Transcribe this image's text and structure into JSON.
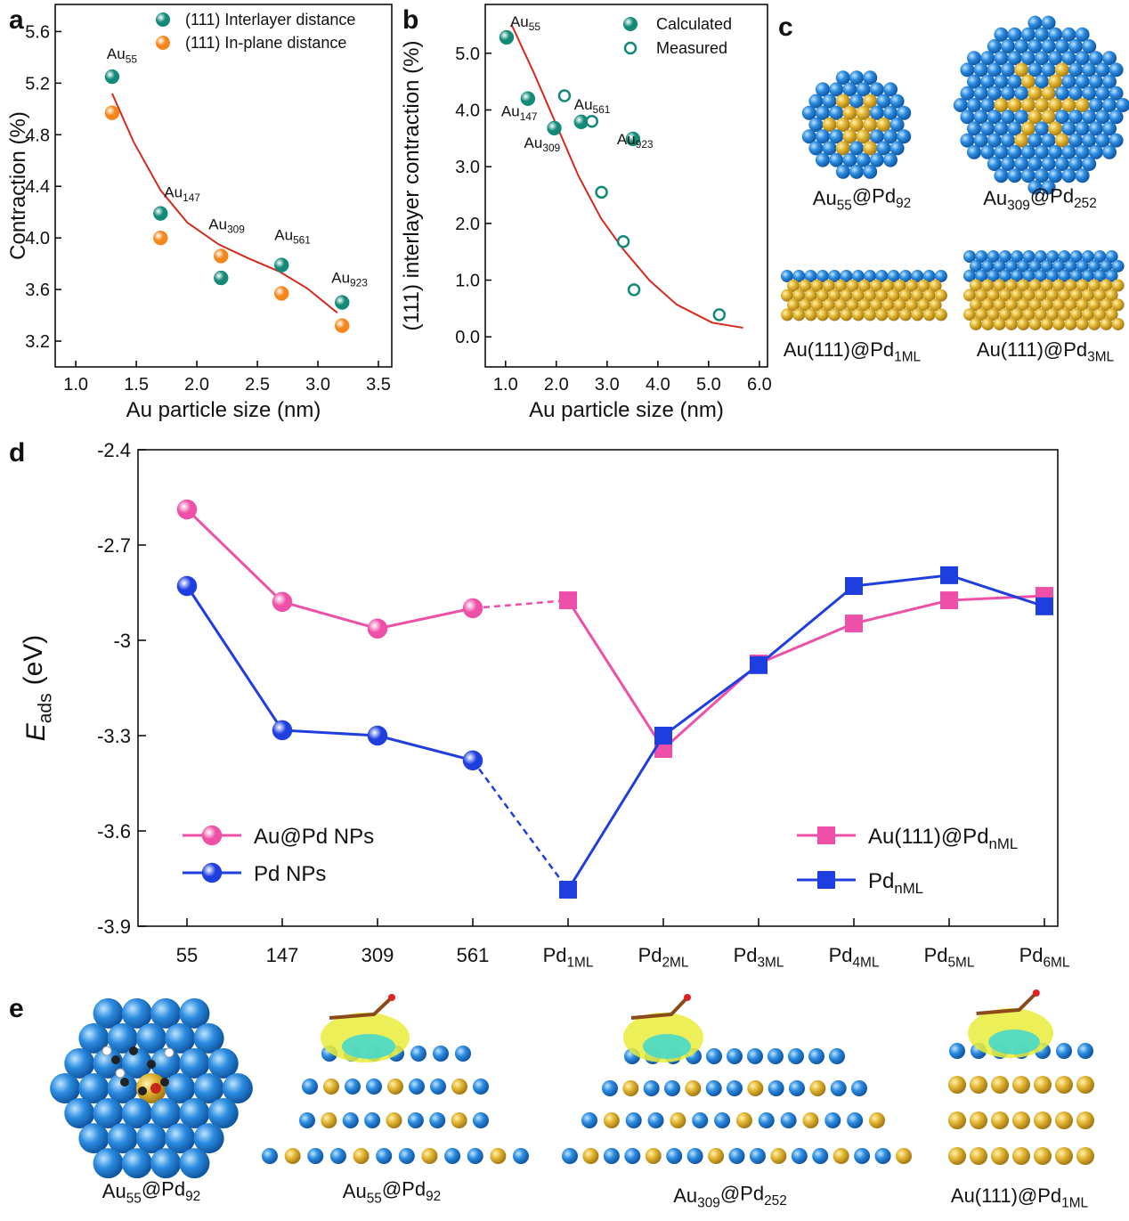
{
  "panel_labels": [
    "a",
    "b",
    "c",
    "d",
    "e"
  ],
  "chart_data": [
    {
      "type": "scatter",
      "xlabel": "Au particle size (nm)",
      "ylabel": "Contraction (%)",
      "xlim": [
        0.83,
        3.61
      ],
      "ylim": [
        3.0,
        5.81
      ],
      "xticks": [
        {
          "value": 1,
          "label": "1.0"
        },
        1.5,
        {
          "value": 2,
          "label": "2.0"
        },
        2.5,
        {
          "value": 3,
          "label": "3.0"
        },
        3.5
      ],
      "yticks": [
        3.2,
        3.6,
        {
          "value": 4,
          "label": "4.0"
        },
        4.4,
        4.8,
        5.2,
        5.6
      ],
      "legend": "upper right",
      "point_label_color": "#111111",
      "series": [
        {
          "name": "(111) Interlayer distance",
          "color": "#138a78",
          "marker": "sphere",
          "x": [
            1.3,
            1.7,
            2.2,
            2.7,
            3.2
          ],
          "values": [
            5.25,
            4.19,
            3.69,
            3.79,
            3.5
          ],
          "point_labels": [
            [
              "Au",
              "55"
            ],
            [
              "Au",
              "147"
            ],
            [
              "Au",
              "309"
            ],
            [
              "Au",
              "561"
            ],
            [
              "Au",
              "923"
            ]
          ]
        },
        {
          "name": "(111) In-plane distance",
          "color": "#f4861c",
          "marker": "sphere",
          "x": [
            1.3,
            1.7,
            2.2,
            2.7,
            3.2
          ],
          "values": [
            4.97,
            4.0,
            3.86,
            3.57,
            3.32
          ]
        }
      ],
      "fit": {
        "color": "#d42a1e",
        "x": [
          1.3,
          1.48,
          1.7,
          1.92,
          2.18,
          2.43,
          2.68,
          2.91,
          3.16
        ],
        "values": [
          5.12,
          4.74,
          4.37,
          4.12,
          3.95,
          3.84,
          3.74,
          3.61,
          3.42
        ]
      }
    },
    {
      "type": "scatter",
      "xlabel": "Au particle size (nm)",
      "ylabel": "(111) interlayer contraction (%)",
      "xlim": [
        0.6,
        6.16
      ],
      "ylim": [
        -0.53,
        5.86
      ],
      "xticks": [
        {
          "value": 1,
          "label": "1.0"
        },
        {
          "value": 2,
          "label": "2.0"
        },
        {
          "value": 3,
          "label": "3.0"
        },
        {
          "value": 4,
          "label": "4.0"
        },
        {
          "value": 5,
          "label": "5.0"
        },
        {
          "value": 6,
          "label": "6.0"
        }
      ],
      "yticks": [
        {
          "value": 0,
          "label": "0.0"
        },
        {
          "value": 1,
          "label": "1.0"
        },
        {
          "value": 2,
          "label": "2.0"
        },
        {
          "value": 3,
          "label": "3.0"
        },
        {
          "value": 4,
          "label": "4.0"
        },
        {
          "value": 5,
          "label": "5.0"
        }
      ],
      "legend": "upper right",
      "point_label_color": "#138a78",
      "series": [
        {
          "name": "Calculated",
          "color": "#138a78",
          "marker": "sphere",
          "x": [
            1.02,
            1.44,
            1.96,
            2.49,
            3.51
          ],
          "values": [
            5.28,
            4.2,
            3.68,
            3.79,
            3.49
          ],
          "point_labels": [
            [
              "Au",
              "55"
            ],
            [
              "Au",
              "147"
            ],
            [
              "Au",
              "309"
            ],
            [
              "Au",
              "561"
            ],
            [
              "Au",
              "923"
            ]
          ]
        },
        {
          "name": "Measured",
          "color": "#138a78",
          "marker": "open",
          "x": [
            2.16,
            2.7,
            2.89,
            3.32,
            3.53,
            5.21
          ],
          "values": [
            4.25,
            3.8,
            2.55,
            1.68,
            0.83,
            0.39
          ]
        }
      ],
      "fit": {
        "color": "#d42a1e",
        "x": [
          1.12,
          1.56,
          2.0,
          2.44,
          2.88,
          3.32,
          3.84,
          4.37,
          5.07,
          5.68
        ],
        "values": [
          5.5,
          4.65,
          3.74,
          2.83,
          2.09,
          1.54,
          0.99,
          0.57,
          0.25,
          0.16
        ]
      }
    },
    {
      "type": "line",
      "ylabel": [
        "E",
        "ads",
        "(eV)"
      ],
      "categories": [
        "55",
        "147",
        "309",
        "561",
        [
          "Pd",
          "1ML"
        ],
        [
          "Pd",
          "2ML"
        ],
        [
          "Pd",
          "3ML"
        ],
        [
          "Pd",
          "4ML"
        ],
        [
          "Pd",
          "5ML"
        ],
        [
          "Pd",
          "6ML"
        ]
      ],
      "ylim": [
        -3.9,
        -2.4
      ],
      "yticks": [
        -3.9,
        -3.6,
        -3.3,
        -3.0,
        -2.7,
        -2.4
      ],
      "series": [
        {
          "name": "Au@Pd NPs",
          "color": "#ee4fa8",
          "marker": "sphere",
          "values": [
            -2.588,
            -2.879,
            -2.963,
            -2.899,
            null,
            null,
            null,
            null,
            null,
            null
          ]
        },
        {
          "name": "Pd NPs",
          "color": "#1f3ee0",
          "marker": "sphere",
          "values": [
            -2.829,
            -3.283,
            -3.3,
            -3.378,
            null,
            null,
            null,
            null,
            null,
            null
          ]
        },
        {
          "name": [
            "Au(111)@Pd",
            "nML"
          ],
          "color": "#ee4fa8",
          "marker": "square",
          "values": [
            null,
            null,
            null,
            null,
            -2.874,
            -3.342,
            -3.073,
            -2.947,
            -2.874,
            -2.86
          ]
        },
        {
          "name": [
            "Pd",
            "nML"
          ],
          "color": "#1f3ee0",
          "marker": "square",
          "values": [
            null,
            null,
            null,
            null,
            -3.785,
            -3.3,
            -3.078,
            -2.829,
            -2.795,
            -2.893
          ]
        }
      ]
    }
  ],
  "structures_c": {
    "captions": [
      [
        "Au",
        "55",
        "@Pd",
        "92"
      ],
      [
        "Au",
        "309",
        "@Pd",
        "252"
      ],
      [
        "Au(111)@Pd",
        "1ML"
      ],
      [
        "Au(111)@Pd",
        "3ML"
      ]
    ]
  },
  "structures_e": {
    "captions": [
      [
        "Au",
        "55",
        "@Pd",
        "92"
      ],
      [
        "Au",
        "55",
        "@Pd",
        "92"
      ],
      [
        "Au",
        "309",
        "@Pd",
        "252"
      ],
      [
        "Au(111)@Pd",
        "1ML"
      ]
    ]
  }
}
